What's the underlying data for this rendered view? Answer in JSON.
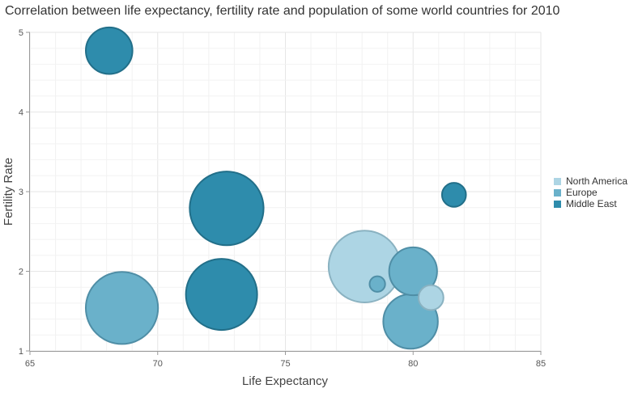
{
  "chart_data": {
    "type": "bubble",
    "title": "Correlation between life expectancy, fertility rate and population of some world countries for 2010",
    "xlabel": "Life Expectancy",
    "ylabel": "Fertility Rate",
    "xlim": [
      65,
      85
    ],
    "ylim": [
      1,
      5
    ],
    "x_ticks": [
      "65",
      "70",
      "75",
      "80",
      "85"
    ],
    "y_ticks": [
      "1",
      "2",
      "3",
      "4",
      "5"
    ],
    "grid": true,
    "legend_position": "right",
    "series": [
      {
        "name": "North America",
        "color": "#add5e4",
        "stroke": "#8ab2c1",
        "points": [
          {
            "x": 78.1,
            "y": 2.06,
            "size": 44.4
          },
          {
            "x": 80.7,
            "y": 1.67,
            "size": 15.4
          }
        ]
      },
      {
        "name": "Europe",
        "color": "#6ab1ca",
        "stroke": "#4f8ea6",
        "points": [
          {
            "x": 68.6,
            "y": 1.54,
            "size": 44.6
          },
          {
            "x": 80.0,
            "y": 2.0,
            "size": 29.6
          },
          {
            "x": 79.9,
            "y": 1.37,
            "size": 33.7
          },
          {
            "x": 78.6,
            "y": 1.84,
            "size": 9.6
          }
        ]
      },
      {
        "name": "Middle East",
        "color": "#2e8cac",
        "stroke": "#226f89",
        "points": [
          {
            "x": 68.1,
            "y": 4.77,
            "size": 28.8
          },
          {
            "x": 72.7,
            "y": 2.79,
            "size": 45.6
          },
          {
            "x": 72.5,
            "y": 1.71,
            "size": 44.0
          },
          {
            "x": 81.6,
            "y": 2.96,
            "size": 14.8
          }
        ]
      }
    ]
  }
}
